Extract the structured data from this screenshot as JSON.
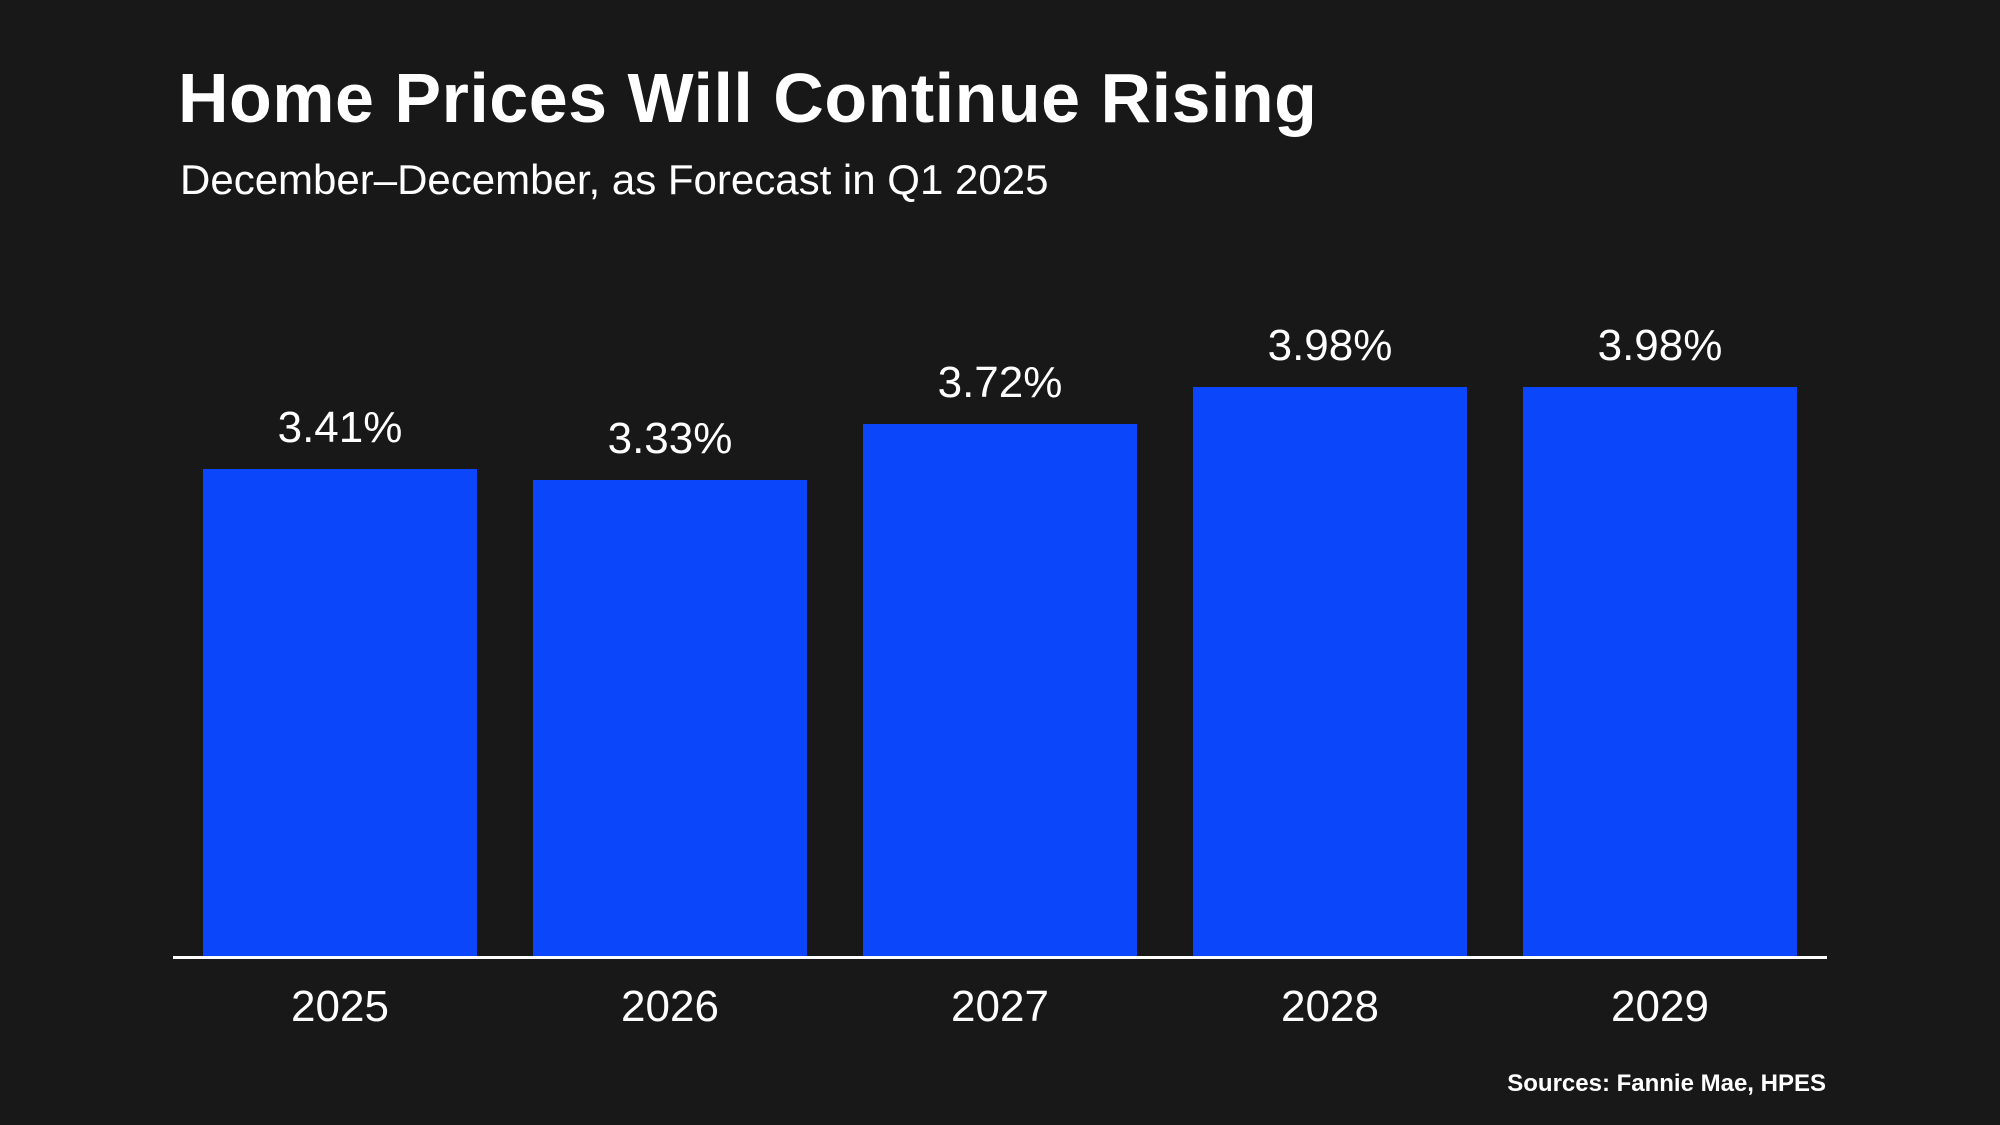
{
  "page": {
    "background": "#181818",
    "text_color": "#ffffff"
  },
  "header": {
    "title": "Home Prices Will Continue Rising",
    "subtitle": "December–December, as Forecast in Q1 2025"
  },
  "footer": {
    "sources": "Sources: Fannie Mae, HPES"
  },
  "chart_data": {
    "type": "bar",
    "title": "Home Prices Will Continue Rising",
    "subtitle": "December–December, as Forecast in Q1 2025",
    "categories": [
      "2025",
      "2026",
      "2027",
      "2028",
      "2029"
    ],
    "values": [
      3.41,
      3.33,
      3.72,
      3.98,
      3.98
    ],
    "labels": [
      "3.41%",
      "3.33%",
      "3.72%",
      "3.98%",
      "3.98%"
    ],
    "xlabel": "",
    "ylabel": "",
    "ylim": [
      0,
      4.5
    ],
    "bar_color": "#0b46fb",
    "axis_color": "#ffffff",
    "grid": false,
    "legend": false,
    "sources": "Sources: Fannie Mae, HPES"
  }
}
